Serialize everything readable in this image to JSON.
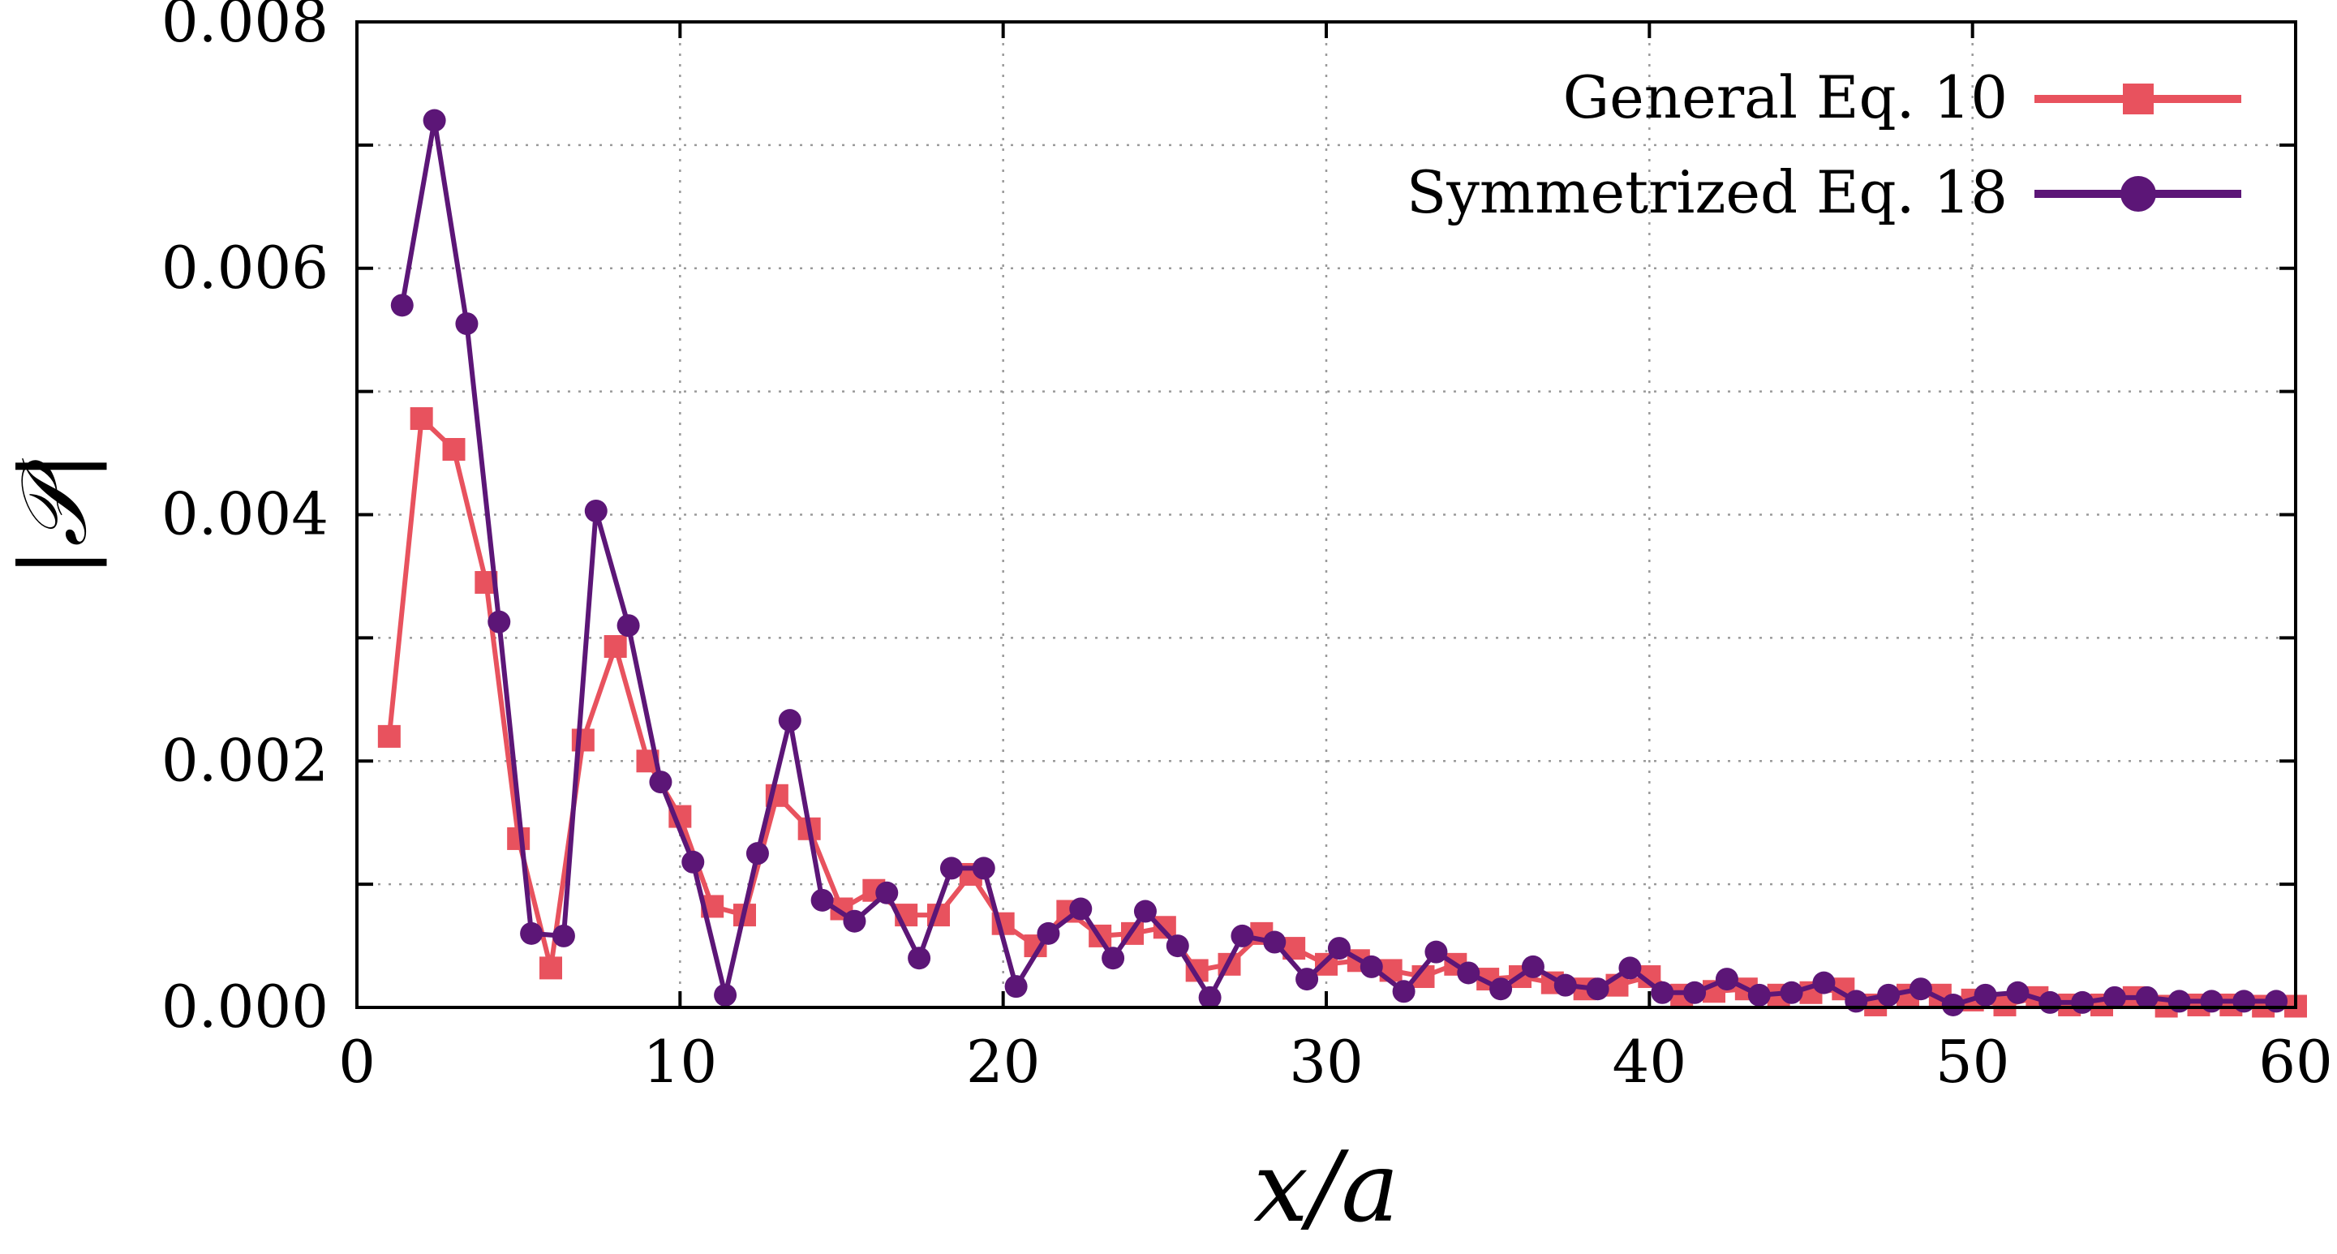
{
  "chart_data": {
    "type": "line",
    "xlabel": "x/a",
    "ylabel": "|𝒫|",
    "xlim": [
      0,
      60
    ],
    "ylim": [
      0,
      0.008
    ],
    "xticks": [
      0,
      10,
      20,
      30,
      40,
      50,
      60
    ],
    "xtick_labels": [
      "0",
      "10",
      "20",
      "30",
      "40",
      "50",
      "60"
    ],
    "yticks": [
      0,
      0.002,
      0.004,
      0.006,
      0.008
    ],
    "ytick_labels": [
      "0.000",
      "0.002",
      "0.004",
      "0.006",
      "0.008"
    ],
    "grid": true,
    "legend_position": "top-right",
    "series": [
      {
        "name": "General Eq. 10",
        "color": "#e8525e",
        "marker": "square",
        "x": [
          1,
          2,
          3,
          4,
          5,
          6,
          7,
          8,
          9,
          10,
          11,
          12,
          13,
          14,
          15,
          16,
          17,
          18,
          19,
          20,
          21,
          22,
          23,
          24,
          25,
          26,
          27,
          28,
          29,
          30,
          31,
          32,
          33,
          34,
          35,
          36,
          37,
          38,
          39,
          40,
          41,
          42,
          43,
          44,
          45,
          46,
          47,
          48,
          49,
          50,
          51,
          52,
          53,
          54,
          55,
          56,
          57,
          58,
          59,
          60
        ],
        "y": [
          0.0022,
          0.00478,
          0.00453,
          0.00345,
          0.00137,
          0.00032,
          0.00217,
          0.00293,
          0.002,
          0.00155,
          0.00082,
          0.00075,
          0.00172,
          0.00145,
          0.0008,
          0.00095,
          0.00075,
          0.00075,
          0.00108,
          0.00068,
          0.0005,
          0.00078,
          0.00058,
          0.0006,
          0.00065,
          0.0003,
          0.00035,
          0.0006,
          0.00048,
          0.00035,
          0.00038,
          0.0003,
          0.00025,
          0.00035,
          0.00023,
          0.00025,
          0.0002,
          0.00015,
          0.00018,
          0.00025,
          0.0001,
          0.00013,
          0.00015,
          0.0001,
          0.00012,
          0.00015,
          2e-05,
          0.0001,
          0.0001,
          6e-05,
          2e-05,
          8e-05,
          2e-05,
          2e-05,
          8e-05,
          1e-05,
          2e-05,
          2e-05,
          1e-05,
          1e-05
        ]
      },
      {
        "name": "Symmetrized Eq. 18",
        "color": "#5c1677",
        "marker": "circle",
        "x": [
          1.4,
          2.4,
          3.4,
          4.4,
          5.4,
          6.4,
          7.4,
          8.4,
          9.4,
          10.4,
          11.4,
          12.4,
          13.4,
          14.4,
          15.4,
          16.4,
          17.4,
          18.4,
          19.4,
          20.4,
          21.4,
          22.4,
          23.4,
          24.4,
          25.4,
          26.4,
          27.4,
          28.4,
          29.4,
          30.4,
          31.4,
          32.4,
          33.4,
          34.4,
          35.4,
          36.4,
          37.4,
          38.4,
          39.4,
          40.4,
          41.4,
          42.4,
          43.4,
          44.4,
          45.4,
          46.4,
          47.4,
          48.4,
          49.4,
          50.4,
          51.4,
          52.4,
          53.4,
          54.4,
          55.4,
          56.4,
          57.4,
          58.4,
          59.4
        ],
        "y": [
          0.0057,
          0.0072,
          0.00555,
          0.00313,
          0.0006,
          0.00058,
          0.00403,
          0.0031,
          0.00183,
          0.00118,
          0.0001,
          0.00125,
          0.00233,
          0.00087,
          0.0007,
          0.00093,
          0.0004,
          0.00113,
          0.00113,
          0.00017,
          0.0006,
          0.0008,
          0.0004,
          0.00078,
          0.0005,
          8e-05,
          0.00058,
          0.00053,
          0.00023,
          0.00048,
          0.00033,
          0.00013,
          0.00045,
          0.00028,
          0.00015,
          0.00033,
          0.00018,
          0.00015,
          0.00032,
          0.00012,
          0.00012,
          0.00023,
          0.0001,
          0.00012,
          0.0002,
          5e-05,
          0.0001,
          0.00015,
          2e-05,
          0.0001,
          0.00012,
          4e-05,
          4e-05,
          8e-05,
          8e-05,
          5e-05,
          5e-05,
          5e-05,
          5e-05
        ]
      }
    ]
  }
}
